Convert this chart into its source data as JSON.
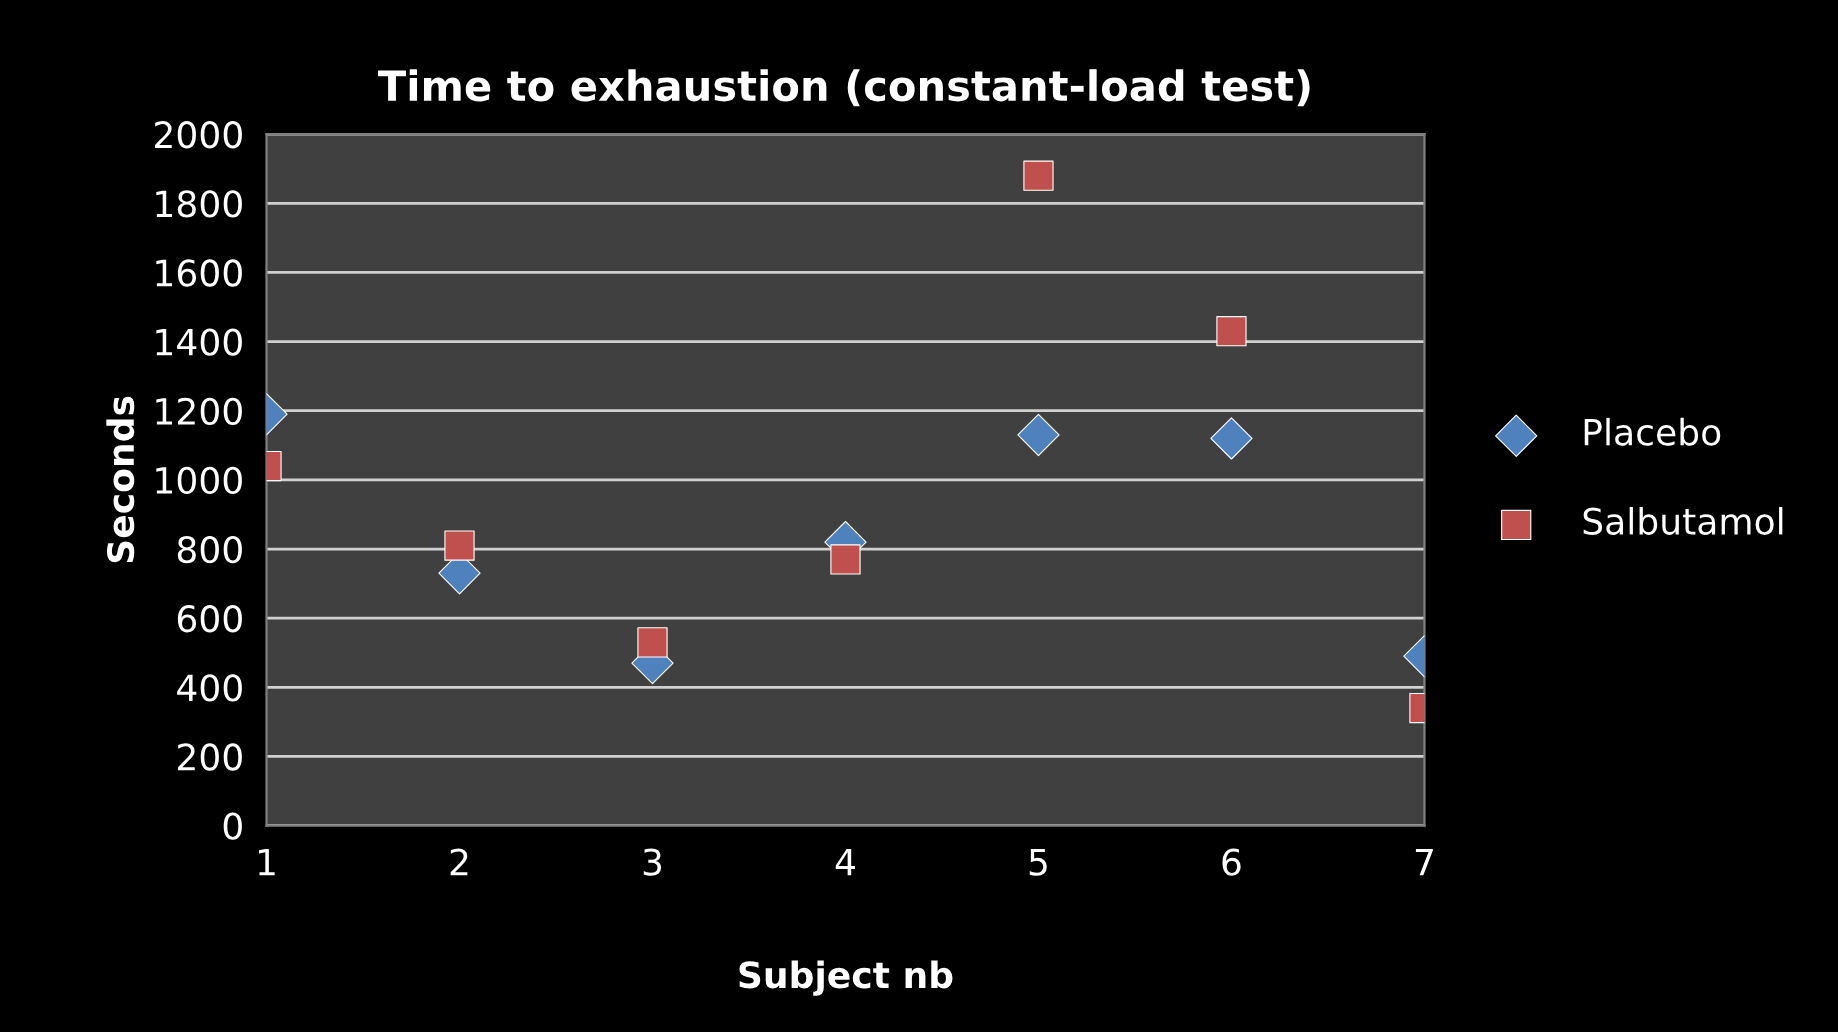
{
  "chart_data": {
    "type": "scatter",
    "title": "Time to exhaustion (constant-load test)",
    "xlabel": "Subject nb",
    "ylabel": "Seconds",
    "x": [
      1,
      2,
      3,
      4,
      5,
      6,
      7
    ],
    "series": [
      {
        "name": "Placebo",
        "color": "#4f81bd",
        "marker": "diamond",
        "values": [
          1190,
          730,
          470,
          820,
          1130,
          1120,
          490
        ]
      },
      {
        "name": "Salbutamol",
        "color": "#c0504d",
        "marker": "square",
        "values": [
          1040,
          810,
          530,
          770,
          1880,
          1430,
          340
        ]
      }
    ],
    "xlim": [
      1,
      7
    ],
    "xticks": [
      1,
      2,
      3,
      4,
      5,
      6,
      7
    ],
    "ylim": [
      0,
      2000
    ],
    "yticks": [
      0,
      200,
      400,
      600,
      800,
      1000,
      1200,
      1400,
      1600,
      1800,
      2000
    ],
    "grid": "y",
    "legend": "right"
  }
}
